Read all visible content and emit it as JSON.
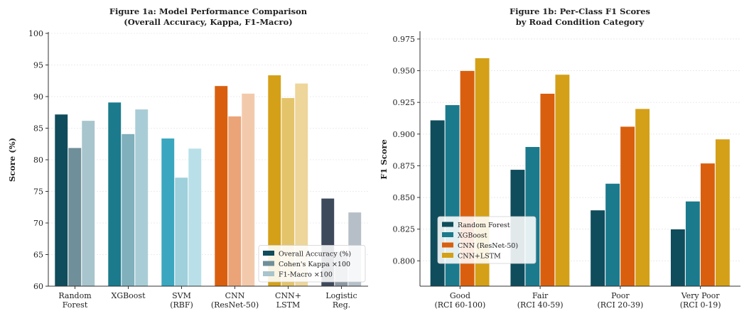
{
  "chart_data": [
    {
      "type": "bar",
      "title": "Figure 1a: Model Performance Comparison",
      "subtitle": "(Overall Accuracy, Kappa, F1-Macro)",
      "xlabel": "",
      "ylabel": "Score (%)",
      "ylim": [
        60,
        100
      ],
      "yticks": [
        60,
        65,
        70,
        75,
        80,
        85,
        90,
        95,
        100
      ],
      "ytick_labels": [
        "60",
        "65",
        "70",
        "75",
        "80",
        "85",
        "90",
        "95",
        "100"
      ],
      "grid": "y",
      "legend_position": "lower-right",
      "categories": [
        [
          "Random",
          "Forest"
        ],
        [
          "XGBoost"
        ],
        [
          "SVM",
          "(RBF)"
        ],
        [
          "CNN",
          "(ResNet-50)"
        ],
        [
          "CNN+",
          "LSTM"
        ],
        [
          "Logistic",
          "Reg."
        ]
      ],
      "series": [
        {
          "name": "Overall Accuracy (%)",
          "values": [
            87.2,
            89.1,
            83.4,
            91.7,
            93.4,
            73.9
          ],
          "color": "#0f4c5c"
        },
        {
          "name": "Cohen's Kappa ×100",
          "values": [
            81.9,
            84.1,
            77.2,
            86.9,
            89.8,
            65.5
          ],
          "color": "#6f8f9a"
        },
        {
          "name": "F1-Macro ×100",
          "values": [
            86.2,
            88.0,
            81.8,
            90.5,
            92.1,
            71.7
          ],
          "color": "#a8c4cc"
        }
      ],
      "category_colors": [
        [
          "#0f4c5c",
          "#6f8f9a",
          "#a8c4cc"
        ],
        [
          "#1b7a8c",
          "#7fb0bc",
          "#a9cdd6"
        ],
        [
          "#3aa6bf",
          "#9fd0dc",
          "#b9e0e8"
        ],
        [
          "#d95f0e",
          "#eba477",
          "#f3c9ac"
        ],
        [
          "#d4a017",
          "#e4c46b",
          "#eed599"
        ],
        [
          "#3d4a5c",
          "#8c97a3",
          "#b6bfc8"
        ]
      ]
    },
    {
      "type": "bar",
      "title": "Figure 1b: Per-Class F1 Scores",
      "subtitle": "by Road Condition Category",
      "xlabel": "",
      "ylabel": "F1 Score",
      "ylim": [
        0.78,
        0.98
      ],
      "yticks": [
        0.8,
        0.825,
        0.85,
        0.875,
        0.9,
        0.925,
        0.95,
        0.975
      ],
      "ytick_labels": [
        "0.800",
        "0.825",
        "0.850",
        "0.875",
        "0.900",
        "0.925",
        "0.950",
        "0.975"
      ],
      "grid": "y",
      "legend_position": "lower-left",
      "categories": [
        [
          "Good",
          "(RCI 60-100)"
        ],
        [
          "Fair",
          "(RCI 40-59)"
        ],
        [
          "Poor",
          "(RCI 20-39)"
        ],
        [
          "Very Poor",
          "(RCI 0-19)"
        ]
      ],
      "series": [
        {
          "name": "Random Forest",
          "values": [
            0.911,
            0.872,
            0.84,
            0.825
          ],
          "color": "#0f4c5c"
        },
        {
          "name": "XGBoost",
          "values": [
            0.923,
            0.89,
            0.861,
            0.847
          ],
          "color": "#1b7a8c"
        },
        {
          "name": "CNN (ResNet-50)",
          "values": [
            0.95,
            0.932,
            0.906,
            0.877
          ],
          "color": "#d95f0e"
        },
        {
          "name": "CNN+LSTM",
          "values": [
            0.96,
            0.947,
            0.92,
            0.896
          ],
          "color": "#d4a017"
        }
      ]
    }
  ]
}
